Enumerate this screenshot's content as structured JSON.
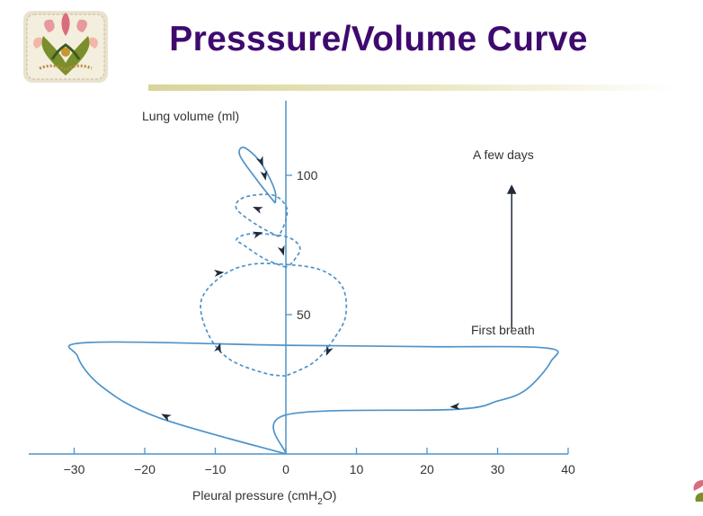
{
  "slide": {
    "title": "Presssure/Volume Curve"
  },
  "colors": {
    "title": "#3f0a6e",
    "curve": "#4f93c9",
    "axis": "#4f93c9",
    "arrowheads": "#1f2a3a",
    "underline": "#d8d49a"
  },
  "icons": {
    "logo": "flower-mosaic-logo",
    "logo_small": "flower-mosaic-logo-small"
  },
  "chart_data": {
    "type": "line",
    "title": "",
    "xlabel": "Pleural pressure (cmH2O)",
    "xlabel_main": "Pleural pressure (cmH",
    "xlabel_sub": "2",
    "xlabel_end": "O)",
    "ylabel": "Lung volume (ml)",
    "xlim": [
      -40,
      40
    ],
    "ylim": [
      0,
      130
    ],
    "x_ticks": [
      -30,
      -20,
      -10,
      0,
      10,
      20,
      30,
      40
    ],
    "x_tick_labels": [
      "−30",
      "−20",
      "−10",
      "0",
      "10",
      "20",
      "30",
      "40"
    ],
    "y_ticks": [
      50,
      100
    ],
    "y_tick_labels": [
      "50",
      "100"
    ],
    "grid": false,
    "annotations": [
      {
        "text": "First breath"
      },
      {
        "text": "A few days"
      }
    ],
    "series": [
      {
        "style": "solid",
        "points": [
          [
            0,
            0
          ],
          [
            -18,
            13
          ],
          [
            -26,
            24
          ],
          [
            -29.5,
            35
          ],
          [
            -28,
            40
          ],
          [
            0,
            39
          ],
          [
            20,
            38.5
          ],
          [
            37,
            38
          ],
          [
            37.5,
            33
          ],
          [
            34,
            23
          ],
          [
            30,
            19
          ],
          [
            24,
            16
          ],
          [
            0,
            14
          ],
          [
            0,
            0
          ]
        ]
      },
      {
        "style": "dashed",
        "points": [
          [
            0,
            28
          ],
          [
            -3,
            29
          ],
          [
            -8,
            34
          ],
          [
            -11,
            43
          ],
          [
            -12,
            55
          ],
          [
            -9,
            64
          ],
          [
            -5,
            68
          ],
          [
            0,
            68
          ],
          [
            5,
            66
          ],
          [
            8,
            60
          ],
          [
            8.5,
            50
          ],
          [
            7,
            42
          ],
          [
            4,
            33
          ],
          [
            0,
            28
          ]
        ]
      },
      {
        "style": "dashed",
        "points": [
          [
            0,
            67
          ],
          [
            -3,
            70
          ],
          [
            -6,
            75
          ],
          [
            -7,
            77
          ],
          [
            -5,
            79
          ],
          [
            0,
            78
          ],
          [
            2,
            74
          ],
          [
            1,
            69
          ],
          [
            0,
            67
          ]
        ]
      },
      {
        "style": "dashed",
        "points": [
          [
            -1,
            78
          ],
          [
            -4,
            82
          ],
          [
            -7,
            88
          ],
          [
            -6,
            92
          ],
          [
            -2,
            93
          ],
          [
            0,
            89
          ],
          [
            0,
            84
          ],
          [
            -1,
            78
          ]
        ]
      },
      {
        "style": "solid",
        "points": [
          [
            -1.5,
            90
          ],
          [
            -4,
            98
          ],
          [
            -6.5,
            107
          ],
          [
            -6,
            110
          ],
          [
            -4,
            106
          ],
          [
            -2.5,
            100
          ],
          [
            -1.5,
            94
          ],
          [
            -1.5,
            90
          ]
        ]
      }
    ],
    "direction_arrows": [
      {
        "x": -17,
        "y": 13.5,
        "dir": [
          -1,
          0.5
        ]
      },
      {
        "x": 24,
        "y": 17,
        "dir": [
          -1,
          -0.05
        ]
      },
      {
        "x": -9.5,
        "y": 38,
        "dir": [
          0.3,
          1
        ]
      },
      {
        "x": 6,
        "y": 37,
        "dir": [
          -0.4,
          -1
        ]
      },
      {
        "x": -9.5,
        "y": 65,
        "dir": [
          1,
          0.1
        ]
      },
      {
        "x": -4,
        "y": 79,
        "dir": [
          1,
          0.3
        ]
      },
      {
        "x": -0.5,
        "y": 73,
        "dir": [
          0.3,
          -1
        ]
      },
      {
        "x": -4,
        "y": 88,
        "dir": [
          -1,
          0.4
        ]
      },
      {
        "x": -3,
        "y": 100,
        "dir": [
          0.2,
          -1
        ]
      },
      {
        "x": -3.5,
        "y": 105,
        "dir": [
          0.4,
          -1
        ]
      }
    ],
    "vertical_arrow": {
      "x": 32,
      "y_from": 45,
      "y_to": 95
    }
  }
}
